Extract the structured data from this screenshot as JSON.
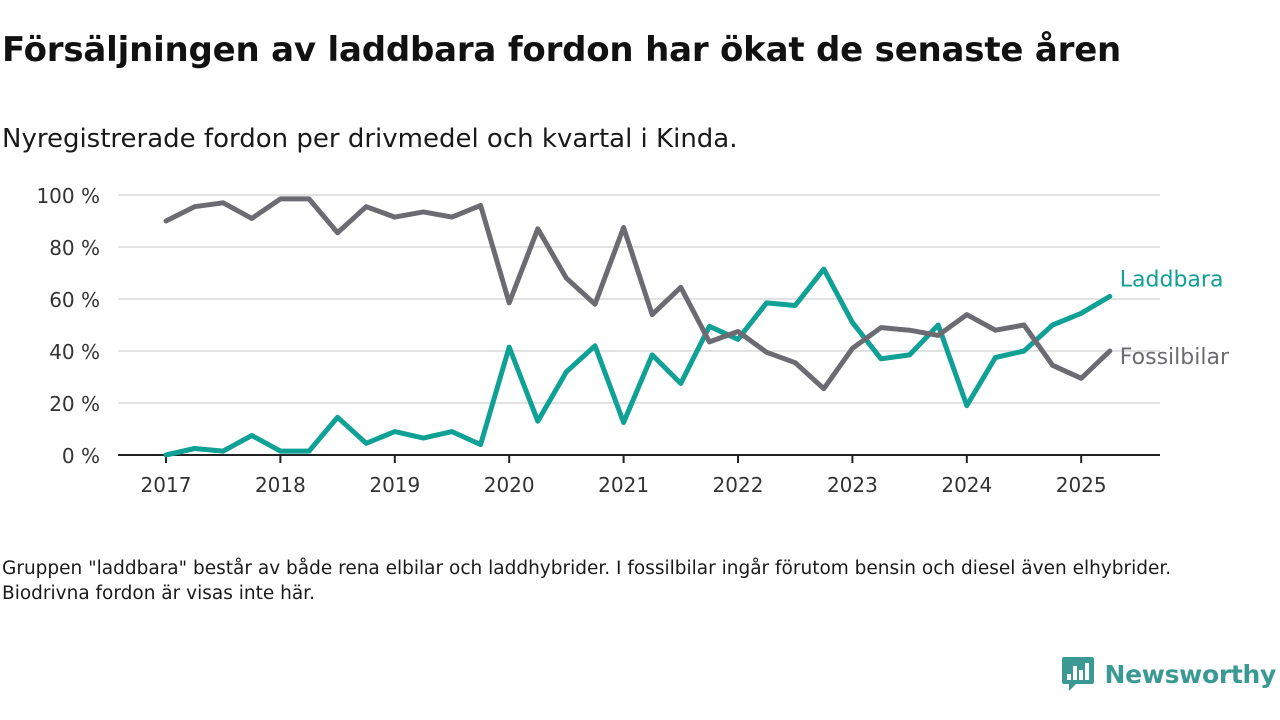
{
  "header": {
    "title": "Försäljningen av laddbara fordon har ökat de senaste åren",
    "subtitle": "Nyregistrerade fordon per drivmedel och kvartal i Kinda."
  },
  "footer": {
    "note": "Gruppen \"laddbara\" består av både rena elbilar och laddhybrider. I fossilbilar ingår förutom bensin och diesel även elhybrider. Biodrivna fordon är visas inte här.",
    "brand_name": "Newsworthy",
    "brand_icon": "newsworthy-logo-icon",
    "brand_color": "#3a9a93"
  },
  "chart_data": {
    "type": "line",
    "x_unit": "quarter",
    "x": [
      "2017Q1",
      "2017Q2",
      "2017Q3",
      "2017Q4",
      "2018Q1",
      "2018Q2",
      "2018Q3",
      "2018Q4",
      "2019Q1",
      "2019Q2",
      "2019Q3",
      "2019Q4",
      "2020Q1",
      "2020Q2",
      "2020Q3",
      "2020Q4",
      "2021Q1",
      "2021Q2",
      "2021Q3",
      "2021Q4",
      "2022Q1",
      "2022Q2",
      "2022Q3",
      "2022Q4",
      "2023Q1",
      "2023Q2",
      "2023Q3",
      "2023Q4",
      "2024Q1",
      "2024Q2",
      "2024Q3",
      "2024Q4",
      "2025Q1",
      "2025Q2"
    ],
    "x_ticks": [
      "2017",
      "2018",
      "2019",
      "2020",
      "2021",
      "2022",
      "2023",
      "2024",
      "2025"
    ],
    "y_ticks": [
      0,
      20,
      40,
      60,
      80,
      100
    ],
    "y_tick_suffix": " %",
    "ylim": [
      0,
      100
    ],
    "grid": "horizontal",
    "legend": "direct labels at line ends",
    "series": [
      {
        "name": "Laddbara",
        "color": "#0fa096",
        "values": [
          0,
          2.5,
          1.5,
          7.5,
          1.5,
          1.5,
          14.5,
          4.5,
          9,
          6.5,
          9,
          4,
          41.5,
          13,
          32,
          42,
          12.5,
          38.5,
          27.5,
          49.5,
          44.5,
          58.5,
          57.5,
          71.5,
          51,
          37,
          38.5,
          50,
          19,
          37.5,
          40,
          50,
          54.5,
          61
        ]
      },
      {
        "name": "Fossilbilar",
        "color": "#6d6b72",
        "values": [
          90,
          95.5,
          97,
          91,
          98.5,
          98.5,
          85.5,
          95.5,
          91.5,
          93.5,
          91.5,
          96,
          58.5,
          87,
          68,
          58,
          87.5,
          54,
          64.5,
          43.5,
          47.5,
          39.5,
          35.5,
          25.5,
          41,
          49,
          48,
          46,
          54,
          48,
          50,
          34.5,
          29.5,
          40
        ]
      }
    ]
  }
}
